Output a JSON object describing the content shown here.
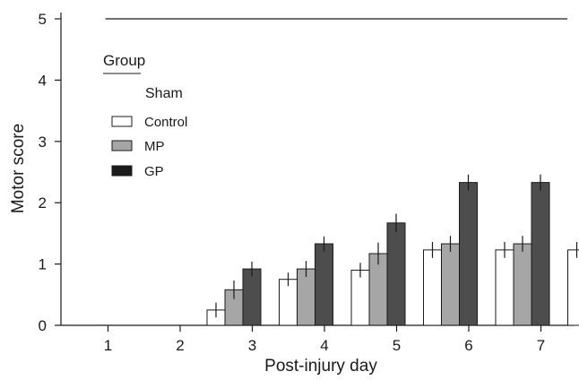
{
  "chart_data": {
    "type": "bar",
    "xlabel": "Post-injury day",
    "ylabel": "Motor score",
    "ylim": [
      0,
      5
    ],
    "yticks": [
      0,
      1,
      2,
      3,
      4,
      5
    ],
    "categories": [
      "1",
      "2",
      "3",
      "4",
      "5",
      "6",
      "7"
    ],
    "legend": {
      "title": "Group",
      "placement": "top-left",
      "entries": [
        "Sham",
        "Control",
        "MP",
        "GP"
      ]
    },
    "series": [
      {
        "name": "Sham",
        "color": "#1a1a1a",
        "style": "line",
        "values": [
          5,
          5,
          5,
          5,
          5,
          5,
          5
        ]
      },
      {
        "name": "Control",
        "color": "#ffffff",
        "values": [
          0,
          0.25,
          0.75,
          0.9,
          1.23,
          1.23,
          1.23
        ],
        "errors": [
          0,
          0.12,
          0.11,
          0.12,
          0.13,
          0.13,
          0.13
        ]
      },
      {
        "name": "MP",
        "color": "#a6a6a6",
        "values": [
          0,
          0.58,
          0.92,
          1.17,
          1.33,
          1.33,
          1.33
        ],
        "errors": [
          0,
          0.15,
          0.13,
          0.18,
          0.13,
          0.13,
          0.13
        ]
      },
      {
        "name": "GP",
        "color": "#4d4d4d",
        "values": [
          0,
          0.92,
          1.33,
          1.67,
          2.33,
          2.33,
          2.33
        ],
        "errors": [
          0,
          0.12,
          0.12,
          0.15,
          0.13,
          0.13,
          0.13
        ]
      }
    ],
    "grid": false
  }
}
